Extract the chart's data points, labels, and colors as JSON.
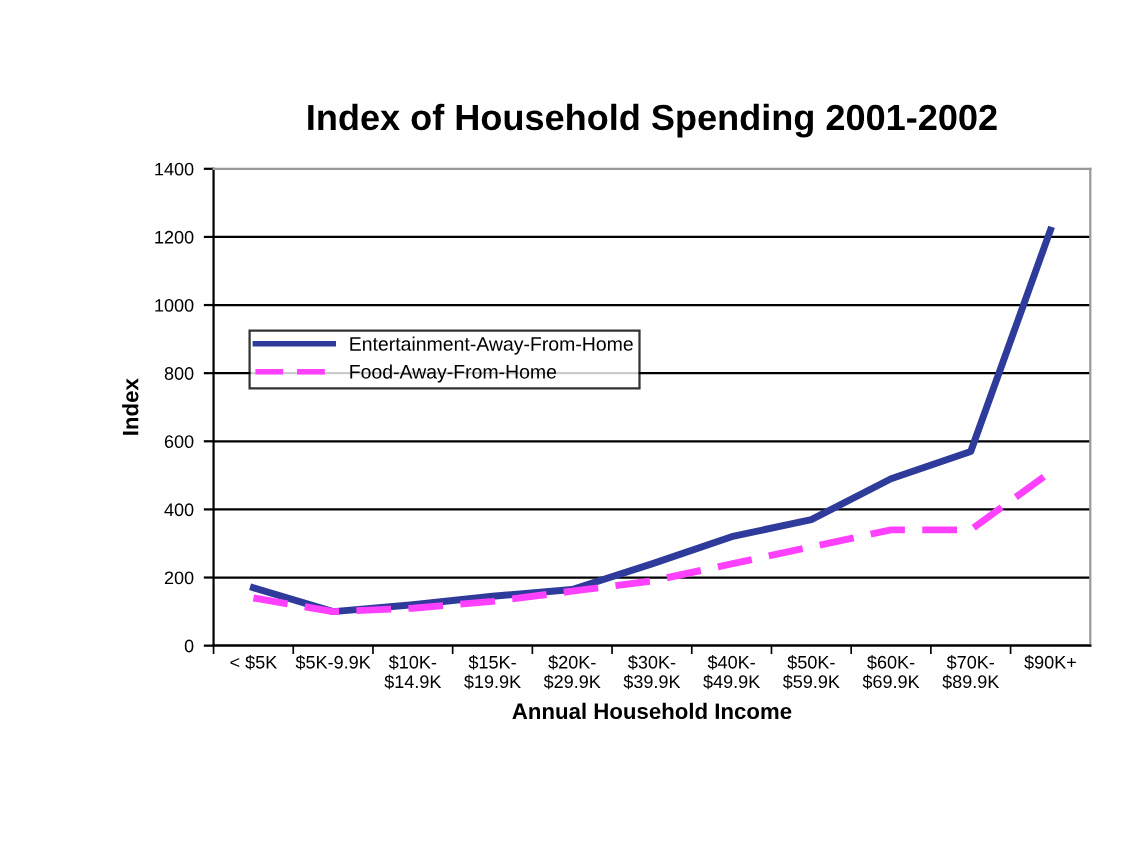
{
  "chart_data": {
    "type": "line",
    "title": "Index of Household Spending 2001-2002",
    "xlabel": "Annual Household Income",
    "ylabel": "Index",
    "categories": [
      "< $5K",
      "$5K-9.9K",
      "$10K-\n$14.9K",
      "$15K-\n$19.9K",
      "$20K-\n$29.9K",
      "$30K-\n$39.9K",
      "$40K-\n$49.9K",
      "$50K-\n$59.9K",
      "$60K-\n$69.9K",
      "$70K-\n$89.9K",
      "$90K+"
    ],
    "series": [
      {
        "name": "Entertainment-Away-From-Home",
        "color": "#2e3b9a",
        "line_style": "solid",
        "values": [
          170,
          100,
          120,
          145,
          165,
          240,
          320,
          370,
          490,
          570,
          1220
        ]
      },
      {
        "name": "Food-Away-From-Home",
        "color": "#ff40ff",
        "line_style": "dashed",
        "values": [
          140,
          100,
          110,
          130,
          160,
          190,
          240,
          290,
          340,
          340,
          510
        ]
      }
    ],
    "ylim": [
      0,
      1400
    ],
    "yticks": [
      0,
      200,
      400,
      600,
      800,
      1000,
      1200,
      1400
    ],
    "grid": "y",
    "legend": "left",
    "marker": "none"
  }
}
